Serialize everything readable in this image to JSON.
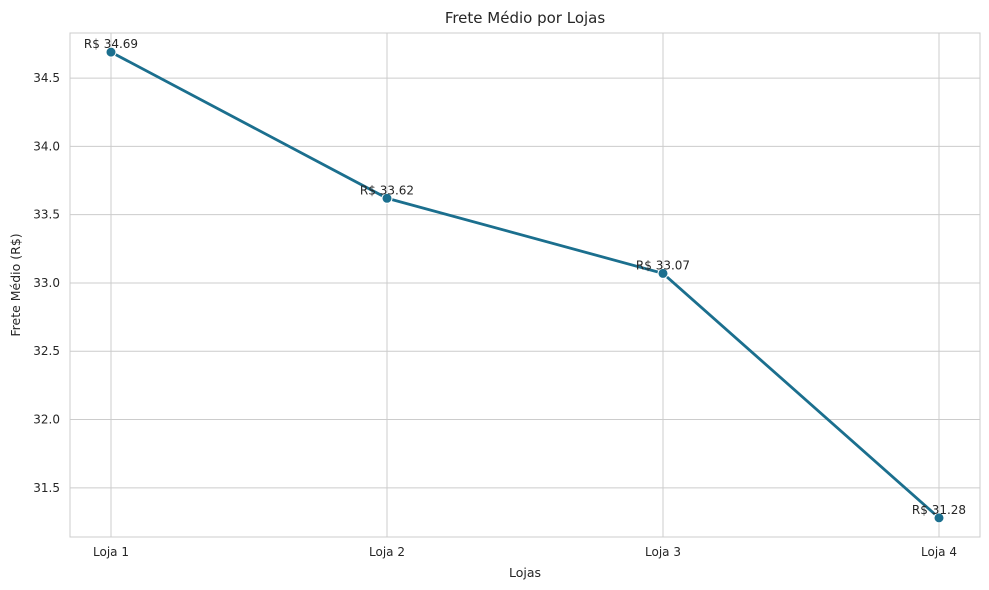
{
  "chart_data": {
    "type": "line",
    "title": "Frete Médio por Lojas",
    "xlabel": "Lojas",
    "ylabel": "Frete Médio (R$)",
    "categories": [
      "Loja 1",
      "Loja 2",
      "Loja 3",
      "Loja 4"
    ],
    "values": [
      34.69,
      33.62,
      33.07,
      31.28
    ],
    "data_labels": [
      "R$ 34.69",
      "R$ 33.62",
      "R$ 33.07",
      "R$ 31.28"
    ],
    "yticks": [
      31.5,
      32.0,
      32.5,
      33.0,
      33.5,
      34.0,
      34.5
    ],
    "ytick_labels": [
      "31.5",
      "32.0",
      "32.5",
      "33.0",
      "33.5",
      "34.0",
      "34.5"
    ],
    "ylim": [
      31.14,
      34.83
    ],
    "grid": true,
    "markers": true,
    "colors": {
      "line": "#1b6f8e",
      "grid": "#cccccc",
      "frame": "#cccccc"
    }
  }
}
